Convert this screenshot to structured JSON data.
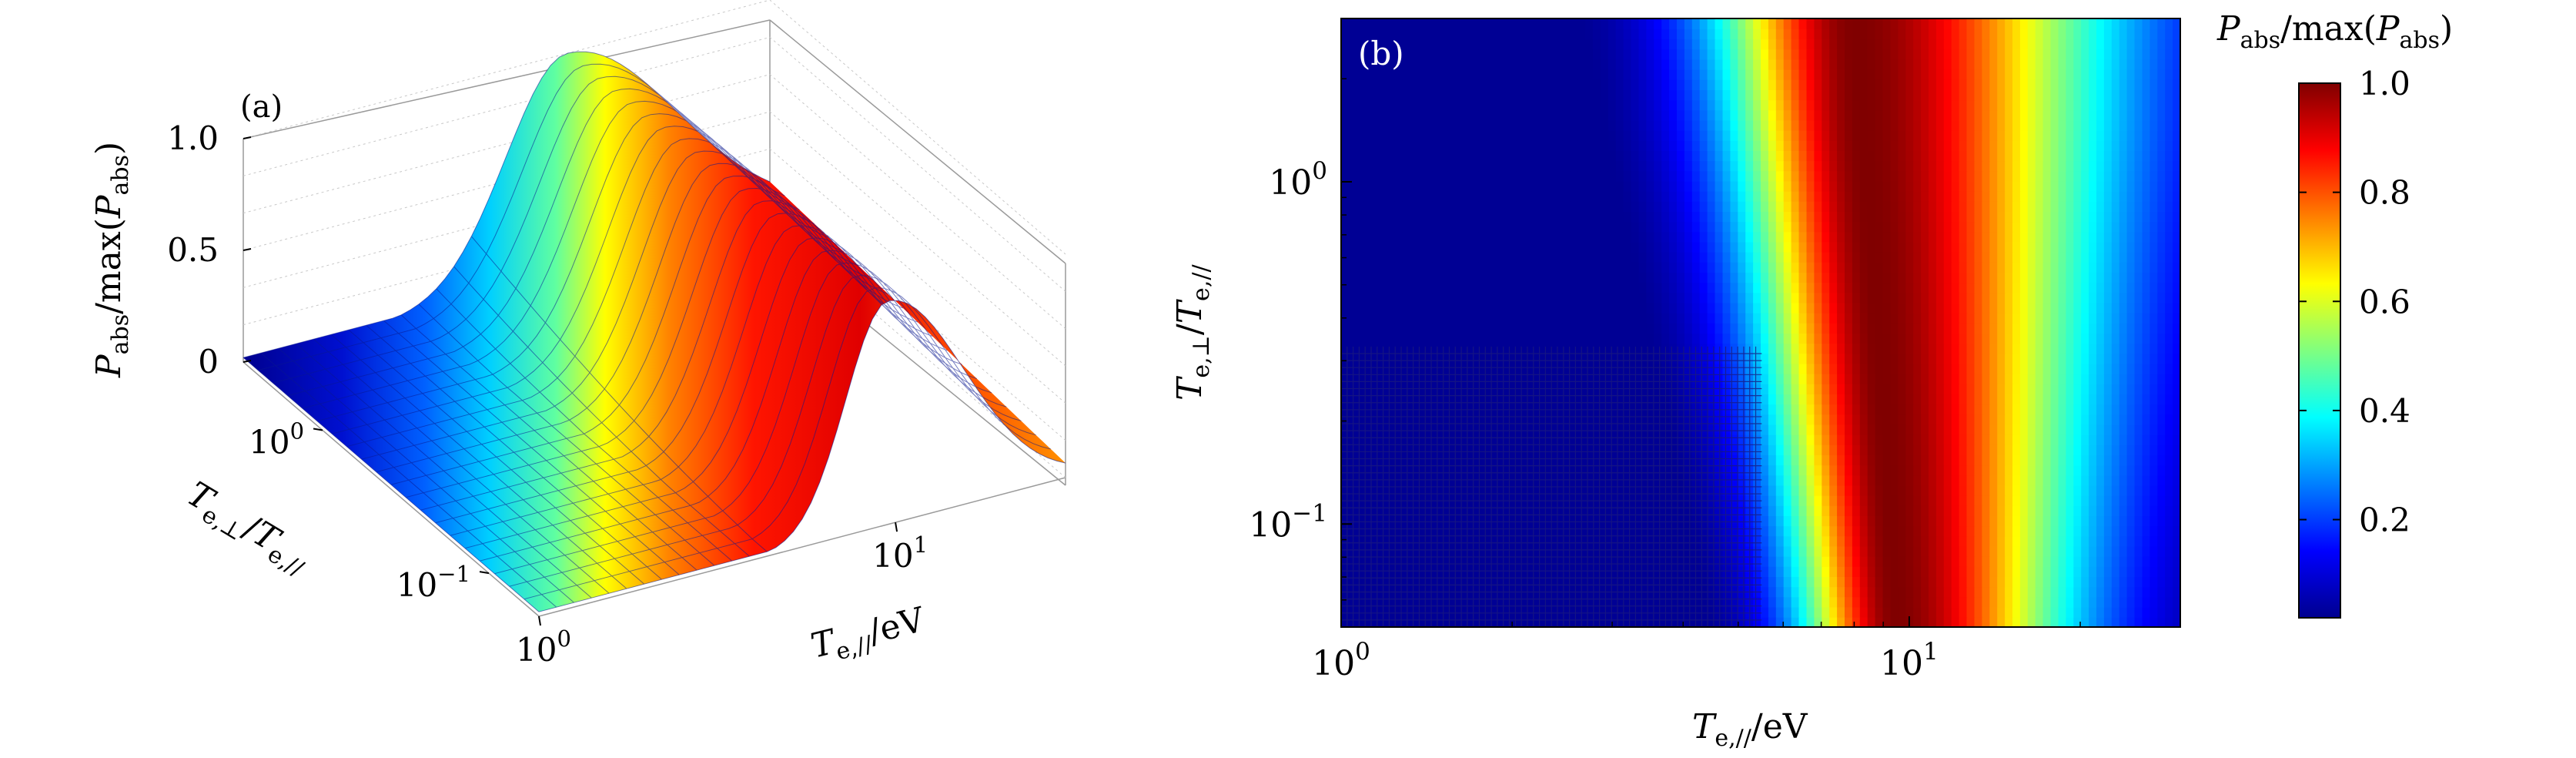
{
  "chart_data": [
    {
      "panel": "(a)",
      "type": "surface",
      "title": "",
      "zlabel": {
        "main": "P",
        "sub": "abs",
        "mid": "/max(",
        "main2": "P",
        "sub2": "abs",
        "end": ")"
      },
      "ylabel": {
        "main": "T",
        "sub": "e,⊥",
        "slash": "/",
        "main2": "T",
        "sub2": "e,//"
      },
      "xlabel": {
        "main": "T",
        "sub": "e,//",
        "unit": "/eV"
      },
      "z_ticks": [
        "0",
        "0.5",
        "1.0"
      ],
      "y_ticks": [
        {
          "base": "10",
          "exp": "0"
        },
        {
          "base": "10",
          "exp": "−1"
        }
      ],
      "x_ticks": [
        {
          "base": "10",
          "exp": "0"
        },
        {
          "base": "10",
          "exp": "1"
        }
      ],
      "xlim": [
        1,
        30
      ],
      "ylim": [
        0.05,
        3
      ],
      "zlim": [
        0,
        1.0
      ],
      "peak": {
        "x": 9.5,
        "z": 1.0
      },
      "colormap": "jet"
    },
    {
      "panel": "(b)",
      "type": "heatmap",
      "title": "",
      "xlabel": {
        "main": "T",
        "sub": "e,//",
        "unit": "/eV"
      },
      "ylabel": {
        "main": "T",
        "sub": "e,⊥",
        "slash": "/",
        "main2": "T",
        "sub2": "e,//"
      },
      "x_ticks": [
        {
          "base": "10",
          "exp": "0"
        },
        {
          "base": "10",
          "exp": "1"
        }
      ],
      "y_ticks": [
        {
          "base": "10",
          "exp": "0"
        },
        {
          "base": "10",
          "exp": "−1"
        }
      ],
      "xlim": [
        1,
        30
      ],
      "ylim": [
        0.05,
        3
      ],
      "peak_x_at_low_y": 9.5,
      "peak_x_at_high_y": 8,
      "colorbar": {
        "label": {
          "main": "P",
          "sub": "abs",
          "mid": "/max(",
          "main2": "P",
          "sub2": "abs",
          "end": ")"
        },
        "ticks": [
          "0.2",
          "0.4",
          "0.6",
          "0.8",
          "1.0"
        ],
        "range": [
          0.02,
          1.0
        ],
        "colormap": "jet"
      }
    }
  ]
}
